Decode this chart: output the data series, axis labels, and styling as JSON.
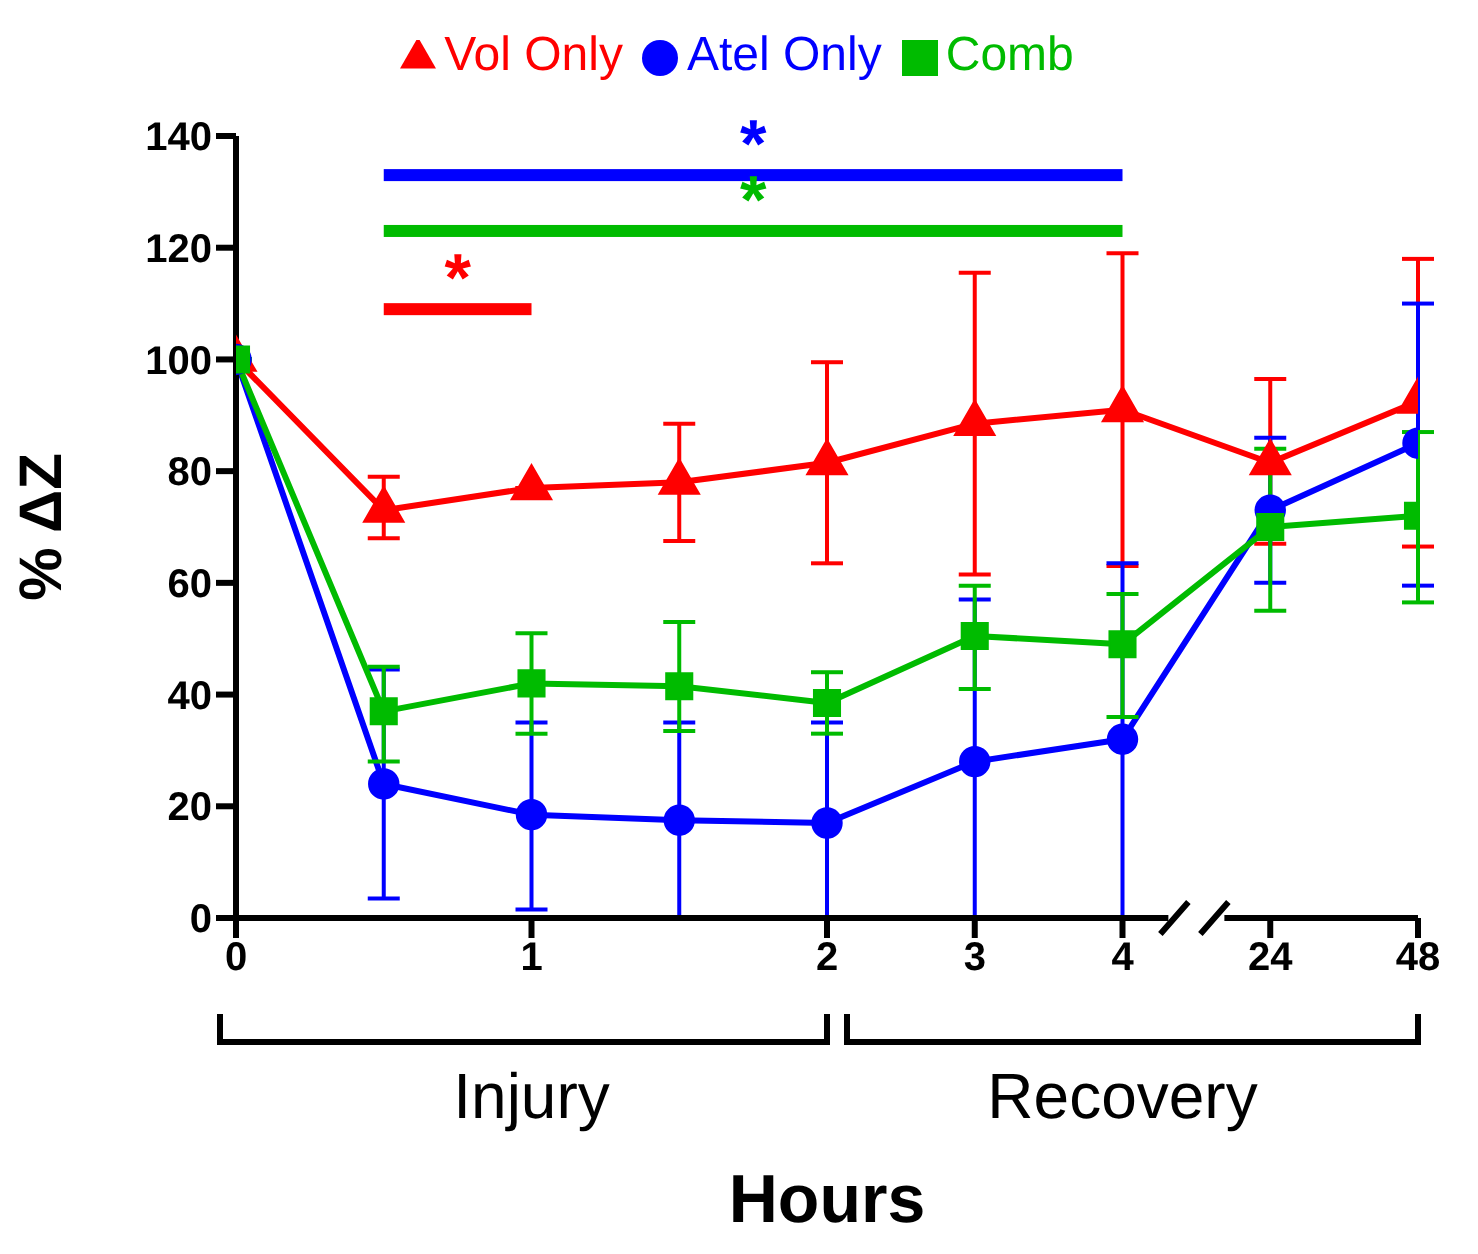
{
  "chart_data": {
    "type": "line",
    "xlabel": "Hours",
    "ylabel": "% ΔZ",
    "categories": [
      "0",
      null,
      "1",
      null,
      "2",
      "3",
      "4",
      "24",
      "48"
    ],
    "ylim": [
      0,
      140
    ],
    "yticks": [
      0,
      20,
      40,
      60,
      80,
      100,
      120,
      140
    ],
    "legend": "top",
    "line_style": "solid",
    "series": [
      {
        "name": "Vol Only",
        "color": "#ff0000",
        "marker": "triangle",
        "values": [
          100,
          73,
          77,
          78,
          81.5,
          88.5,
          91,
          81.5,
          92.5
        ],
        "errors": [
          null,
          [
            68,
            79
          ],
          null,
          [
            67.5,
            88.5
          ],
          [
            63.5,
            99.5
          ],
          [
            61.5,
            115.5
          ],
          [
            63,
            119
          ],
          [
            67,
            96.5
          ],
          [
            66.5,
            118
          ]
        ]
      },
      {
        "name": "Atel Only",
        "color": "#0000ff",
        "marker": "circle",
        "values": [
          100,
          24,
          18.5,
          17.5,
          17,
          28,
          32,
          73,
          85
        ],
        "errors": [
          null,
          [
            3.5,
            44.5
          ],
          [
            1.5,
            35
          ],
          [
            0,
            35
          ],
          [
            0,
            35
          ],
          [
            0,
            57
          ],
          [
            0,
            63.5
          ],
          [
            60,
            86
          ],
          [
            59.5,
            110
          ]
        ]
      },
      {
        "name": "Comb",
        "color": "#00bb00",
        "marker": "square",
        "values": [
          100,
          37,
          42,
          41.5,
          38.5,
          50.5,
          49,
          70,
          72
        ],
        "errors": [
          null,
          [
            28,
            45
          ],
          [
            33,
            51
          ],
          [
            33.5,
            53
          ],
          [
            33,
            44
          ],
          [
            41,
            59.5
          ],
          [
            36,
            58
          ],
          [
            55,
            84
          ],
          [
            56.5,
            87
          ]
        ]
      }
    ],
    "annotations": [
      "*",
      "*",
      "*",
      "Injury",
      "Recovery"
    ]
  }
}
